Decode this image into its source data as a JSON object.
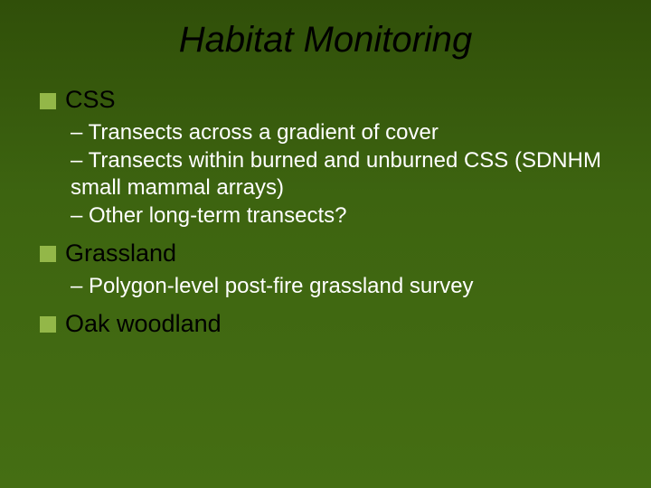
{
  "slide": {
    "title": "Habitat Monitoring",
    "background_gradient_top": "#304f09",
    "background_gradient_bottom": "#456e13",
    "title_color": "#000000",
    "title_fontsize": 40,
    "title_italic": true,
    "bullet_color": "#93b748",
    "bullet_size": 18,
    "section_title_color": "#000000",
    "section_title_fontsize": 27,
    "subitem_color": "#ffffff",
    "subitem_fontsize": 24,
    "sections": [
      {
        "title": "CSS",
        "items": [
          "– Transects across a gradient of cover",
          "– Transects within burned and unburned CSS (SDNHM small mammal arrays)",
          "– Other long-term transects?"
        ]
      },
      {
        "title": "Grassland",
        "items": [
          "– Polygon-level post-fire grassland survey"
        ]
      },
      {
        "title": "Oak woodland",
        "items": []
      }
    ]
  }
}
